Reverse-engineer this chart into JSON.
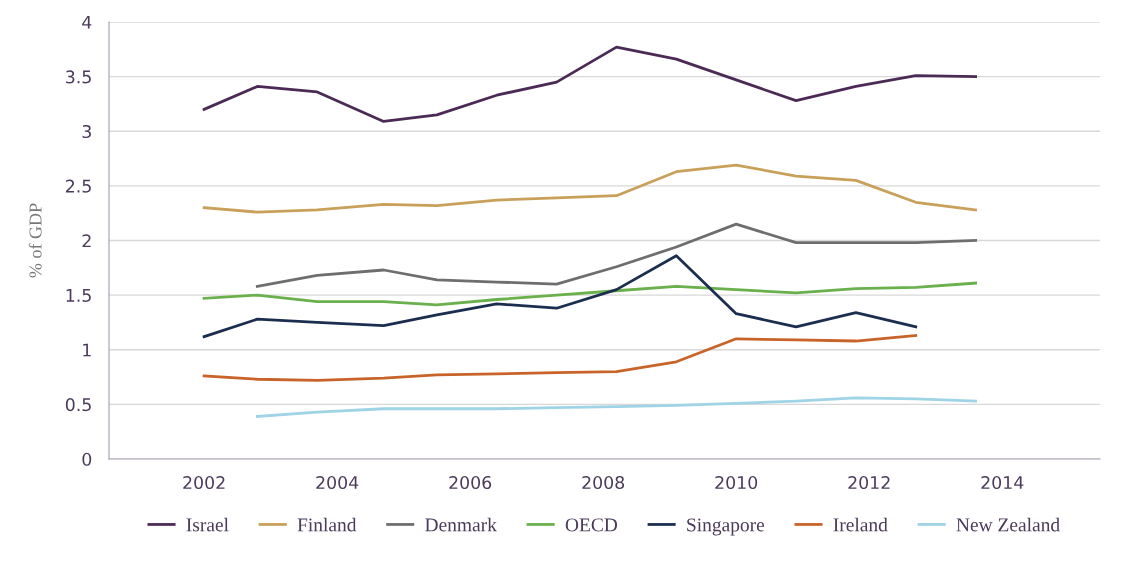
{
  "chart_data": {
    "type": "line",
    "ylabel": "% of GDP",
    "x": [
      2002.0,
      2002.8,
      2003.7,
      2004.7,
      2005.5,
      2006.4,
      2007.3,
      2008.2,
      2009.1,
      2010.0,
      2010.9,
      2011.8,
      2012.7,
      2013.6
    ],
    "series": [
      {
        "name": "Israel",
        "color": "#4b2a55",
        "values": [
          3.2,
          3.41,
          3.36,
          3.09,
          3.15,
          3.33,
          3.45,
          3.77,
          3.66,
          3.47,
          3.28,
          3.41,
          3.51,
          3.5
        ]
      },
      {
        "name": "Finland",
        "color": "#c9a05a",
        "values": [
          2.3,
          2.26,
          2.28,
          2.33,
          2.32,
          2.37,
          2.39,
          2.41,
          2.63,
          2.69,
          2.59,
          2.55,
          2.35,
          2.28
        ]
      },
      {
        "name": "Denmark",
        "color": "#6e6e6e",
        "values": [
          null,
          1.58,
          1.68,
          1.73,
          1.64,
          1.62,
          1.6,
          1.76,
          1.94,
          2.15,
          1.98,
          1.98,
          1.98,
          2.0
        ]
      },
      {
        "name": "OECD",
        "color": "#6ab04c",
        "values": [
          1.47,
          1.5,
          1.44,
          1.44,
          1.41,
          1.46,
          1.5,
          1.54,
          1.58,
          1.55,
          1.52,
          1.56,
          1.57,
          1.61
        ]
      },
      {
        "name": "Singapore",
        "color": "#1c2e4f",
        "values": [
          1.12,
          1.28,
          1.25,
          1.22,
          1.32,
          1.42,
          1.38,
          1.55,
          1.86,
          1.33,
          1.21,
          1.34,
          1.21,
          null
        ]
      },
      {
        "name": "Ireland",
        "color": "#c8642a",
        "values": [
          0.76,
          0.73,
          0.72,
          0.74,
          0.77,
          0.78,
          0.79,
          0.8,
          0.89,
          1.1,
          1.09,
          1.08,
          1.13,
          null
        ]
      },
      {
        "name": "New Zealand",
        "color": "#9fd3e6",
        "values": [
          null,
          0.39,
          0.43,
          0.46,
          0.46,
          0.46,
          0.47,
          0.48,
          0.49,
          0.51,
          0.53,
          0.56,
          0.55,
          0.53
        ]
      }
    ],
    "xlim": [
      2000.57,
      2015.47
    ],
    "xticks": [
      2002,
      2004,
      2006,
      2008,
      2010,
      2012,
      2014
    ],
    "ylim": [
      0,
      4
    ],
    "yticks": [
      0,
      0.5,
      1,
      1.5,
      2,
      2.5,
      3,
      3.5,
      4
    ],
    "grid": "y",
    "legend": "bottom",
    "marker": "none",
    "line_style": "solid"
  }
}
